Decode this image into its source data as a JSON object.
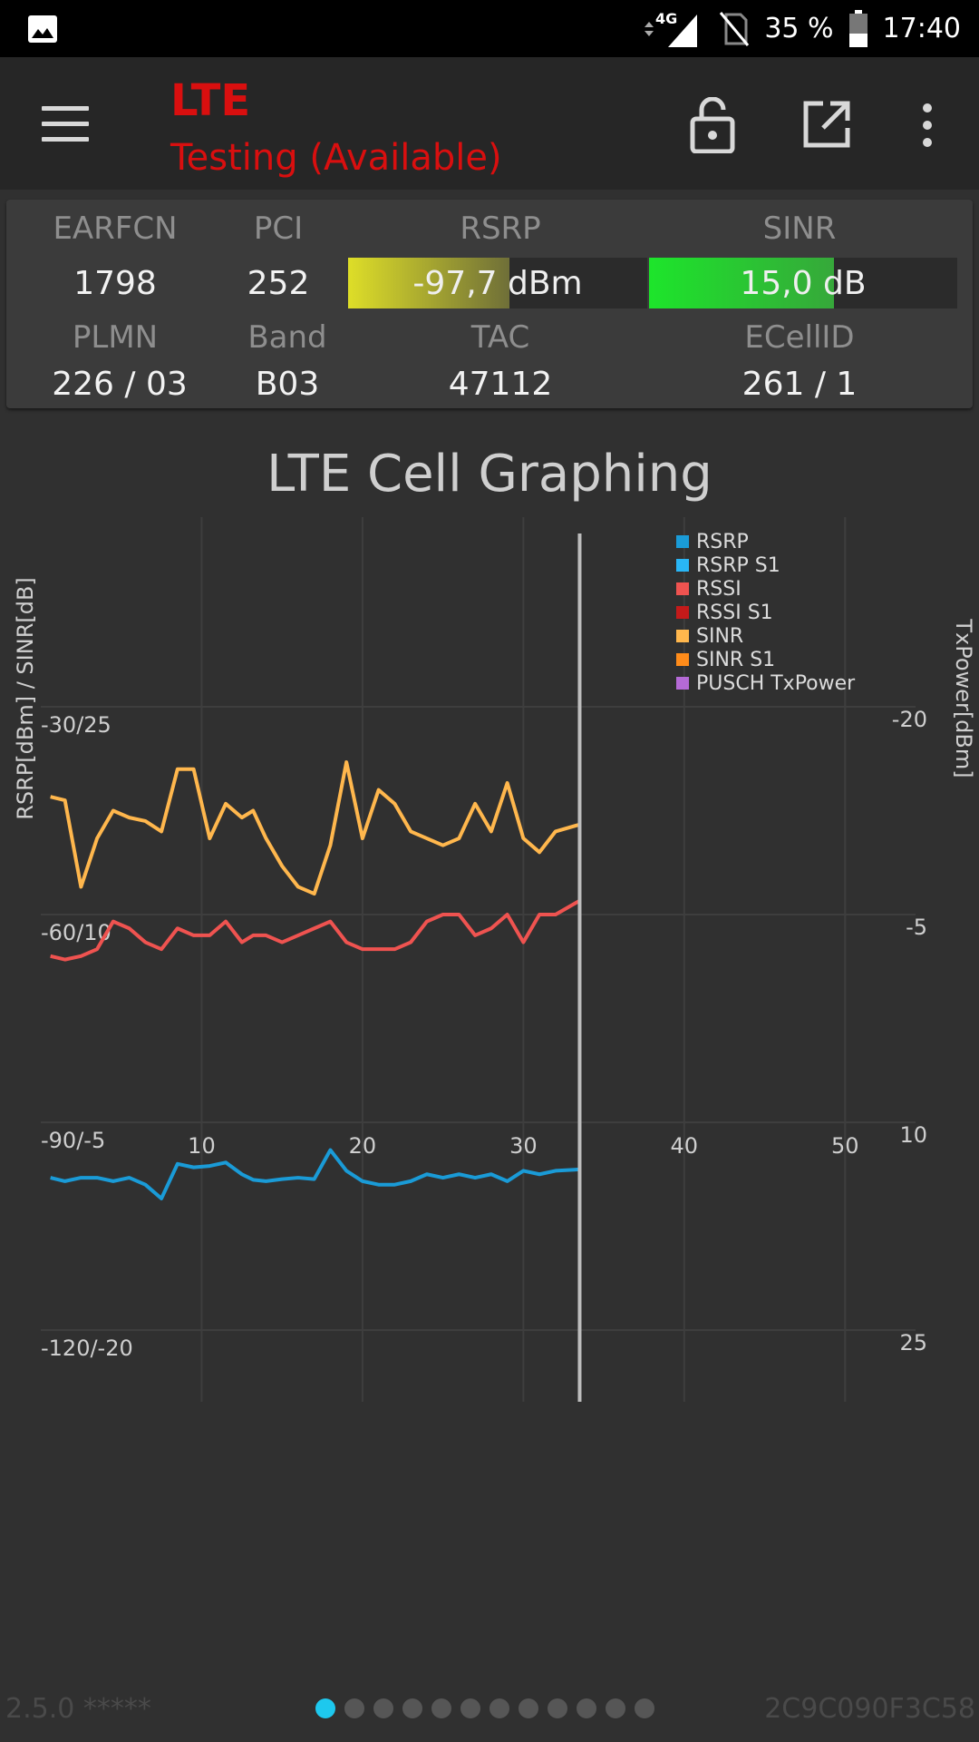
{
  "status_bar": {
    "network": "4G",
    "battery": "35 %",
    "time": "17:40"
  },
  "toolbar": {
    "title": "LTE",
    "subtitle": "Testing (Available)"
  },
  "cell_info": {
    "earfcn_label": "EARFCN",
    "earfcn": "1798",
    "pci_label": "PCI",
    "pci": "252",
    "rsrp_label": "RSRP",
    "rsrp": "-97,7 dBm",
    "rsrp_fill": 0.54,
    "sinr_label": "SINR",
    "sinr": "15,0 dB",
    "sinr_fill": 0.6,
    "plmn_label": "PLMN",
    "plmn": "226 / 03",
    "band_label": "Band",
    "band": "B03",
    "tac_label": "TAC",
    "tac": "47112",
    "ecellid_label": "ECellID",
    "ecellid": "261 / 1"
  },
  "chart": {
    "title": "LTE Cell Graphing"
  },
  "chart_data": {
    "type": "line",
    "title": "LTE Cell Graphing",
    "ylabel_left": "RSRP[dBm] / SINR[dB]",
    "ylabel_right": "TxPower[dBm]",
    "left_ticks": [
      "-30/25",
      "-60/10",
      "-90/-5",
      "-120/-20"
    ],
    "right_ticks": [
      "-20",
      "-5",
      "10",
      "25"
    ],
    "x_ticks": [
      "10",
      "20",
      "30",
      "40",
      "50"
    ],
    "xlim": [
      0,
      55
    ],
    "ylim_rsrp": [
      -150,
      0
    ],
    "current_x": 33.5,
    "legend": [
      {
        "name": "RSRP",
        "color": "#1a9bd7"
      },
      {
        "name": "RSRP S1",
        "color": "#29b6f6"
      },
      {
        "name": "RSSI",
        "color": "#ef5350"
      },
      {
        "name": "RSSI S1",
        "color": "#c41a1a"
      },
      {
        "name": "SINR",
        "color": "#ffb74d"
      },
      {
        "name": "SINR S1",
        "color": "#ff8c1a"
      },
      {
        "name": "PUSCH TxPower",
        "color": "#b56ad6"
      }
    ],
    "series": [
      {
        "name": "SINR",
        "color": "#ffb74d",
        "x": [
          0.6,
          1.5,
          2.5,
          3.5,
          4.5,
          5.5,
          6.5,
          7.5,
          8.5,
          9.5,
          10.5,
          11.5,
          12.5,
          13.2,
          14,
          15,
          16,
          17,
          18,
          19,
          20,
          21,
          22,
          23,
          24,
          25,
          26,
          27,
          28,
          29,
          30,
          31,
          32,
          33.5
        ],
        "y": [
          -43,
          -43.5,
          -56,
          -49,
          -45,
          -46,
          -46.5,
          -48,
          -39,
          -39,
          -49,
          -44,
          -46,
          -45,
          -49,
          -53,
          -56,
          -57,
          -50,
          -38,
          -49,
          -42,
          -44,
          -48,
          -49,
          -50,
          -49,
          -44,
          -48,
          -41,
          -49,
          -51,
          -48,
          -47
        ]
      },
      {
        "name": "RSSI",
        "color": "#ef5350",
        "x": [
          0.6,
          1.5,
          2.5,
          3.5,
          4.5,
          5.5,
          6.5,
          7.5,
          8.5,
          9.5,
          10.5,
          11.5,
          12.5,
          13.2,
          14,
          15,
          16,
          17,
          18,
          19,
          20,
          21,
          22,
          23,
          24,
          25,
          26,
          27,
          28,
          29,
          30,
          31,
          32,
          33.5
        ],
        "y": [
          -66,
          -66.5,
          -66,
          -65,
          -61,
          -62,
          -64,
          -65,
          -62,
          -63,
          -63,
          -61,
          -64,
          -63,
          -63,
          -64,
          -63,
          -62,
          -61,
          -64,
          -65,
          -65,
          -65,
          -64,
          -61,
          -60,
          -60,
          -63,
          -62,
          -60,
          -64,
          -60,
          -60,
          -58
        ]
      },
      {
        "name": "RSRP",
        "color": "#1a9bd7",
        "x": [
          0.6,
          1.5,
          2.5,
          3.5,
          4.5,
          5.5,
          6.5,
          7.5,
          8.5,
          9.5,
          10.5,
          11.5,
          12.5,
          13.2,
          14,
          15,
          16,
          17,
          18,
          19,
          20,
          21,
          22,
          23,
          24,
          25,
          26,
          27,
          28,
          29,
          30,
          31,
          32,
          33.5
        ],
        "y": [
          -98,
          -98.5,
          -98,
          -98,
          -98.5,
          -98,
          -99,
          -101,
          -96,
          -96.5,
          -96.3,
          -95.8,
          -97.5,
          -98.3,
          -98.5,
          -98.2,
          -98,
          -98.2,
          -94,
          -97,
          -98.5,
          -99,
          -99,
          -98.5,
          -97.5,
          -98,
          -97.5,
          -98,
          -97.5,
          -98.5,
          -97,
          -97.5,
          -97,
          -96.8
        ]
      }
    ]
  },
  "footer": {
    "version": "2.5.0 *****",
    "device_id": "2C9C090F3C58",
    "page_count": 12,
    "active_page": 1
  }
}
